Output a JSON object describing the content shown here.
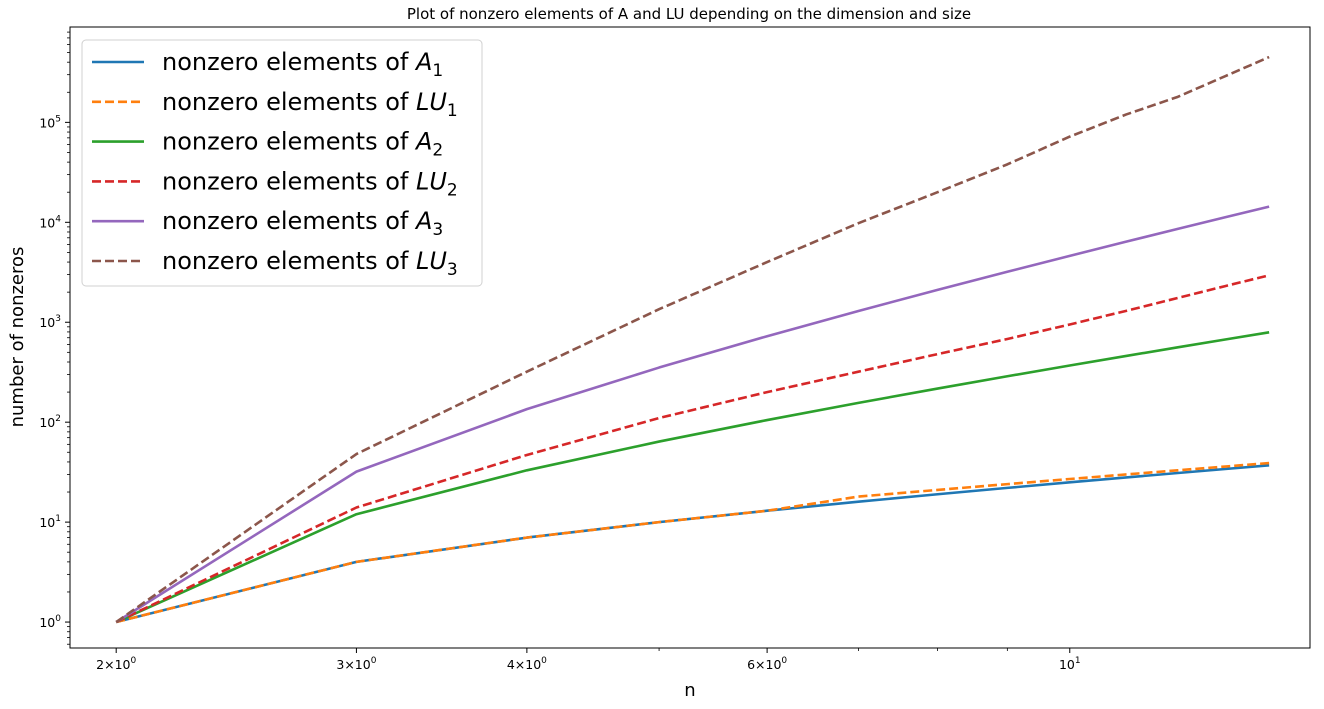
{
  "chart_data": {
    "type": "line",
    "title": "Plot of nonzero elements of A and LU depending on the dimension and size",
    "xlabel": "n",
    "ylabel": "number of nonzeros",
    "xscale": "log",
    "yscale": "log",
    "xlim": [
      1.85,
      15.0
    ],
    "ylim": [
      0.55,
      900000
    ],
    "grid": false,
    "legend_position": "top-left",
    "x_ticks": [
      {
        "value": 2,
        "base": "2×10",
        "exp": "0"
      },
      {
        "value": 3,
        "base": "3×10",
        "exp": "0"
      },
      {
        "value": 4,
        "base": "4×10",
        "exp": "0"
      },
      {
        "value": 6,
        "base": "6×10",
        "exp": "0"
      },
      {
        "value": 10,
        "base": "10",
        "exp": "1"
      }
    ],
    "x_minor_ticks": [
      5,
      7,
      8,
      9
    ],
    "y_ticks": [
      {
        "value": 1,
        "base": "10",
        "exp": "0"
      },
      {
        "value": 10,
        "base": "10",
        "exp": "1"
      },
      {
        "value": 100,
        "base": "10",
        "exp": "2"
      },
      {
        "value": 1000,
        "base": "10",
        "exp": "3"
      },
      {
        "value": 10000,
        "base": "10",
        "exp": "4"
      },
      {
        "value": 100000,
        "base": "10",
        "exp": "5"
      }
    ],
    "x": [
      2,
      3,
      4,
      5,
      6,
      7,
      8,
      9,
      10,
      11,
      12,
      13,
      14
    ],
    "series": [
      {
        "name": "nonzero elements of ",
        "name_main": "A",
        "name_sub": "1",
        "color": "#1f77b4",
        "dash": false,
        "values": [
          1,
          4,
          7,
          10,
          13,
          16,
          19,
          22,
          25,
          28,
          31,
          34,
          37
        ]
      },
      {
        "name": "nonzero elements of ",
        "name_main": "LU",
        "name_sub": "1",
        "color": "#ff7f0e",
        "dash": true,
        "values": [
          1,
          4,
          7,
          10,
          13,
          18,
          21,
          24,
          27,
          30,
          33,
          36,
          39
        ]
      },
      {
        "name": "nonzero elements of ",
        "name_main": "A",
        "name_sub": "2",
        "color": "#2ca02c",
        "dash": false,
        "values": [
          1,
          12,
          33,
          64,
          105,
          156,
          217,
          288,
          369,
          460,
          561,
          672,
          793
        ]
      },
      {
        "name": "nonzero elements of ",
        "name_main": "LU",
        "name_sub": "2",
        "color": "#d62728",
        "dash": true,
        "values": [
          1,
          14,
          47,
          110,
          200,
          320,
          480,
          680,
          950,
          1300,
          1750,
          2300,
          2950
        ]
      },
      {
        "name": "nonzero elements of ",
        "name_main": "A",
        "name_sub": "3",
        "color": "#9467bd",
        "dash": false,
        "values": [
          1,
          32,
          135,
          352,
          725,
          1296,
          2107,
          3200,
          4617,
          6400,
          8591,
          11232,
          14365
        ]
      },
      {
        "name": "nonzero elements of ",
        "name_main": "LU",
        "name_sub": "3",
        "color": "#8c564b",
        "dash": true,
        "values": [
          1,
          48,
          320,
          1350,
          4000,
          9800,
          20000,
          38000,
          72000,
          120000,
          180000,
          290000,
          450000
        ]
      }
    ]
  }
}
